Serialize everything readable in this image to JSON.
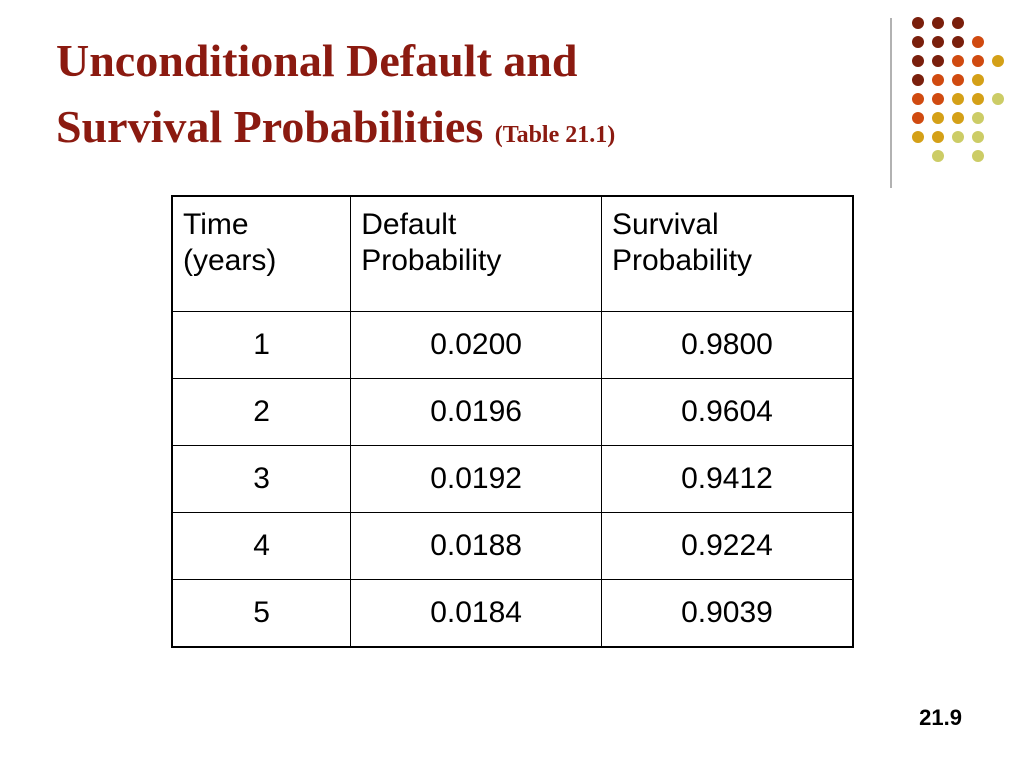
{
  "header": {
    "title_lines": [
      "Unconditional Default and",
      "Survival Probabilities"
    ],
    "subtitle": "(Table 21.1)"
  },
  "table": {
    "columns": [
      [
        "Time",
        "(years)"
      ],
      [
        "Default",
        "Probability"
      ],
      [
        "Survival",
        "Probability"
      ]
    ],
    "rows": [
      [
        "1",
        "0.0200",
        "0.9800"
      ],
      [
        "2",
        "0.0196",
        "0.9604"
      ],
      [
        "3",
        "0.0192",
        "0.9412"
      ],
      [
        "4",
        "0.0188",
        "0.9224"
      ],
      [
        "5",
        "0.0184",
        "0.9039"
      ]
    ]
  },
  "footer": {
    "page_number": "21.9"
  }
}
